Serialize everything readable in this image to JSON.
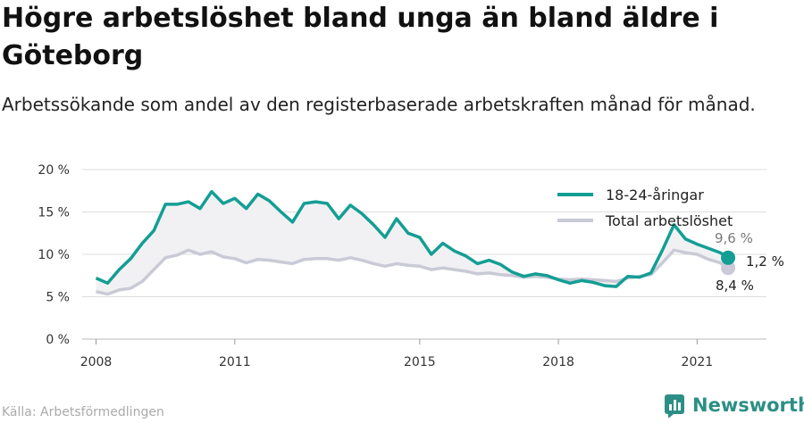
{
  "title": "Högre arbetslöshet bland unga än bland äldre i Göteborg",
  "subtitle": "Arbetssökande som andel av den registerbaserade arbetskraften månad för månad.",
  "source": "Källa: Arbetsförmedlingen",
  "brand": "Newsworthy",
  "colors": {
    "youth": "#139e94",
    "total": "#c9cad6",
    "shade": "#f1f1f4",
    "grid": "#dddddd",
    "brand": "#2c8f86"
  },
  "end_labels": {
    "youth": "9,6 %",
    "total": "8,4 %",
    "diff": "1,2 %"
  },
  "chart_data": {
    "type": "line",
    "title": "Högre arbetslöshet bland unga än bland äldre i Göteborg",
    "subtitle": "Arbetssökande som andel av den registerbaserade arbetskraften månad för månad.",
    "xlabel": "",
    "ylabel": "",
    "x_ticks": [
      2008,
      2011,
      2015,
      2018,
      2021
    ],
    "y_ticks": [
      "0 %",
      "5 %",
      "10 %",
      "15 %",
      "20 %"
    ],
    "ylim": [
      0,
      20
    ],
    "xlim": [
      2007.7,
      2022.5
    ],
    "grid": true,
    "legend_position": "top-right",
    "series": [
      {
        "name": "18-24-åringar",
        "x": [
          2008.0,
          2008.25,
          2008.5,
          2008.75,
          2009.0,
          2009.25,
          2009.5,
          2009.75,
          2010.0,
          2010.25,
          2010.5,
          2010.75,
          2011.0,
          2011.25,
          2011.5,
          2011.75,
          2012.0,
          2012.25,
          2012.5,
          2012.75,
          2013.0,
          2013.25,
          2013.5,
          2013.75,
          2014.0,
          2014.25,
          2014.5,
          2014.75,
          2015.0,
          2015.25,
          2015.5,
          2015.75,
          2016.0,
          2016.25,
          2016.5,
          2016.75,
          2017.0,
          2017.25,
          2017.5,
          2017.75,
          2018.0,
          2018.25,
          2018.5,
          2018.75,
          2019.0,
          2019.25,
          2019.5,
          2019.75,
          2020.0,
          2020.25,
          2020.5,
          2020.75,
          2021.0,
          2021.25,
          2021.5,
          2021.67
        ],
        "y": [
          7.2,
          6.6,
          8.2,
          9.5,
          11.3,
          12.8,
          15.9,
          15.9,
          16.2,
          15.4,
          17.4,
          16.0,
          16.6,
          15.4,
          17.1,
          16.3,
          15.0,
          13.8,
          16.0,
          16.2,
          16.0,
          14.2,
          15.8,
          14.8,
          13.5,
          12.0,
          14.2,
          12.5,
          12.0,
          10.0,
          11.3,
          10.4,
          9.8,
          8.9,
          9.3,
          8.8,
          7.9,
          7.4,
          7.7,
          7.5,
          7.0,
          6.6,
          6.9,
          6.7,
          6.3,
          6.2,
          7.4,
          7.3,
          7.8,
          10.5,
          13.5,
          11.8,
          11.2,
          10.7,
          10.2,
          9.6
        ]
      },
      {
        "name": "Total arbetslöshet",
        "x": [
          2008.0,
          2008.25,
          2008.5,
          2008.75,
          2009.0,
          2009.25,
          2009.5,
          2009.75,
          2010.0,
          2010.25,
          2010.5,
          2010.75,
          2011.0,
          2011.25,
          2011.5,
          2011.75,
          2012.0,
          2012.25,
          2012.5,
          2012.75,
          2013.0,
          2013.25,
          2013.5,
          2013.75,
          2014.0,
          2014.25,
          2014.5,
          2014.75,
          2015.0,
          2015.25,
          2015.5,
          2015.75,
          2016.0,
          2016.25,
          2016.5,
          2016.75,
          2017.0,
          2017.25,
          2017.5,
          2017.75,
          2018.0,
          2018.25,
          2018.5,
          2018.75,
          2019.0,
          2019.25,
          2019.5,
          2019.75,
          2020.0,
          2020.25,
          2020.5,
          2020.75,
          2021.0,
          2021.25,
          2021.5,
          2021.67
        ],
        "y": [
          5.6,
          5.3,
          5.8,
          6.0,
          6.8,
          8.2,
          9.6,
          9.9,
          10.5,
          10.0,
          10.3,
          9.7,
          9.5,
          9.0,
          9.4,
          9.3,
          9.1,
          8.9,
          9.4,
          9.5,
          9.5,
          9.3,
          9.6,
          9.3,
          8.9,
          8.6,
          8.9,
          8.7,
          8.6,
          8.2,
          8.4,
          8.2,
          8.0,
          7.7,
          7.8,
          7.6,
          7.5,
          7.3,
          7.4,
          7.3,
          7.1,
          7.0,
          7.1,
          7.0,
          6.9,
          6.8,
          7.2,
          7.4,
          7.6,
          9.0,
          10.5,
          10.2,
          10.0,
          9.4,
          9.0,
          8.4
        ]
      }
    ]
  }
}
